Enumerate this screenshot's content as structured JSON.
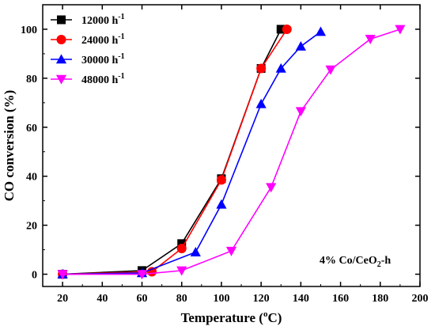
{
  "chart_data": {
    "type": "line",
    "xlabel": "Temperature (°C)",
    "xlabel_parts": {
      "main": "Temperature (",
      "sup": "o",
      "tail": "C)"
    },
    "ylabel": "CO conversion (%)",
    "xlim": [
      10,
      200
    ],
    "ylim": [
      -5,
      110
    ],
    "xticks": [
      20,
      40,
      60,
      80,
      100,
      120,
      140,
      160,
      180,
      200
    ],
    "yticks": [
      0,
      20,
      40,
      60,
      80,
      100
    ],
    "grid": false,
    "legend_position": "top-left",
    "annotation": {
      "text": "4% Co/CeO2-h",
      "main": "4% Co/CeO",
      "sub": "2",
      "tail": "-h",
      "position": "bottom-right"
    },
    "series": [
      {
        "name": "12000 h-1",
        "label_main": "12000 h",
        "label_sup": "-1",
        "color": "#000000",
        "marker": "square",
        "x": [
          20,
          60,
          80,
          100,
          120,
          130
        ],
        "y": [
          0,
          1.5,
          12.5,
          39,
          84,
          100
        ]
      },
      {
        "name": "24000 h-1",
        "label_main": "24000 h",
        "label_sup": "-1",
        "color": "#ff0000",
        "marker": "circle",
        "x": [
          20,
          65,
          80,
          100,
          120,
          133
        ],
        "y": [
          0,
          1,
          10.5,
          38.5,
          84,
          100
        ]
      },
      {
        "name": "30000 h-1",
        "label_main": "30000 h",
        "label_sup": "-1",
        "color": "#0000ff",
        "marker": "triangle-up",
        "x": [
          20,
          60,
          87,
          100,
          120,
          130,
          140,
          150
        ],
        "y": [
          0,
          0.5,
          9,
          28.5,
          69.5,
          84,
          93,
          99
        ]
      },
      {
        "name": "48000 h-1",
        "label_main": "48000 h",
        "label_sup": "-1",
        "color": "#ff00ff",
        "marker": "triangle-down",
        "x": [
          20,
          60,
          80,
          105,
          125,
          140,
          155,
          175,
          190
        ],
        "y": [
          0,
          0,
          1.5,
          9.5,
          35.5,
          66.5,
          83.5,
          96,
          100
        ]
      }
    ]
  }
}
